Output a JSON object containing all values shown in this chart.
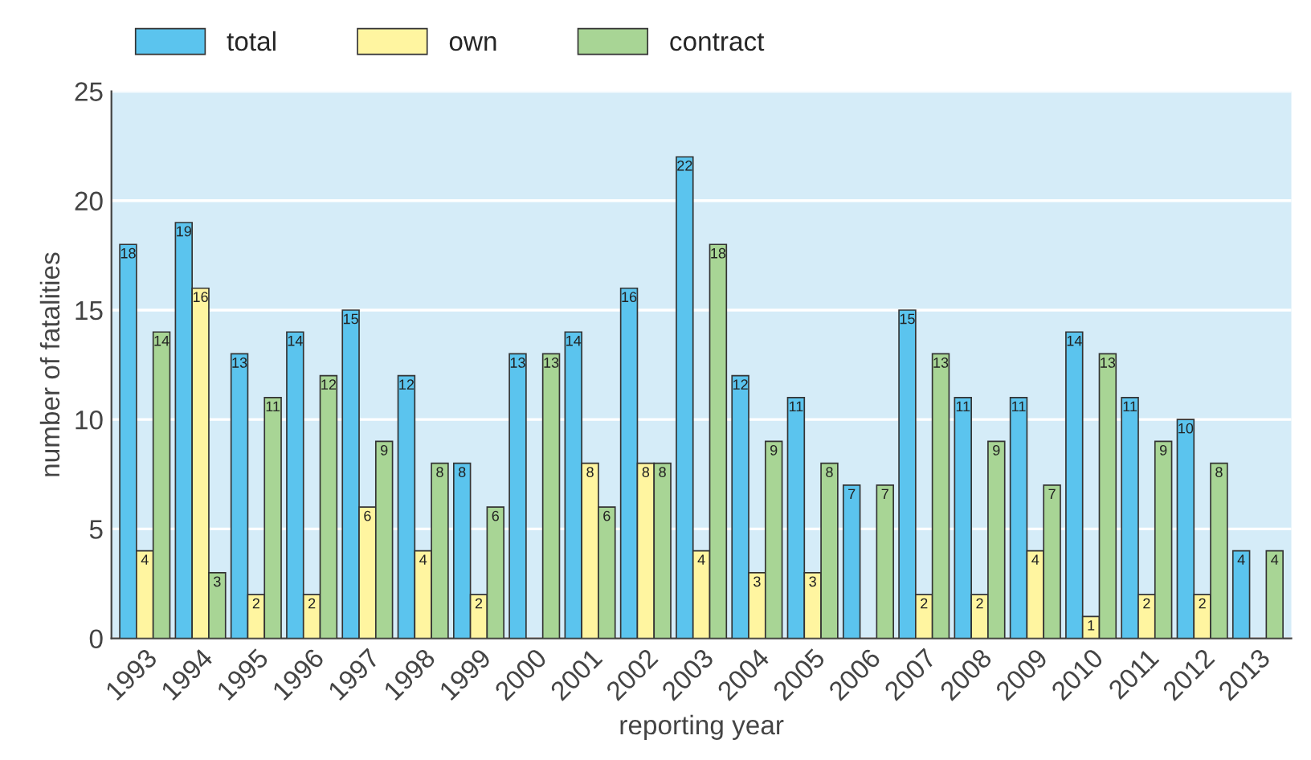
{
  "chart_data": {
    "type": "bar",
    "xlabel": "reporting year",
    "ylabel": "number of fatalities",
    "categories": [
      "1993",
      "1994",
      "1995",
      "1996",
      "1997",
      "1998",
      "1999",
      "2000",
      "2001",
      "2002",
      "2003",
      "2004",
      "2005",
      "2006",
      "2007",
      "2008",
      "2009",
      "2010",
      "2011",
      "2012",
      "2013"
    ],
    "series": [
      {
        "name": "total",
        "color": "#5bc4ee",
        "values": [
          18,
          19,
          13,
          14,
          15,
          12,
          8,
          13,
          14,
          16,
          22,
          12,
          11,
          7,
          15,
          11,
          11,
          14,
          11,
          10,
          4
        ],
        "value_labels": [
          "18",
          "19",
          "13",
          "14",
          "15",
          "12",
          "8",
          "13",
          "14",
          "16",
          "22",
          "12",
          "11",
          "7",
          "15",
          "11",
          "11",
          "14",
          "11",
          "10",
          "4"
        ]
      },
      {
        "name": "own",
        "color": "#fff5a0",
        "values": [
          4,
          16,
          2,
          2,
          6,
          4,
          2,
          0,
          8,
          8,
          4,
          3,
          3,
          0,
          2,
          2,
          4,
          1,
          2,
          2,
          0
        ],
        "value_labels": [
          "4",
          "16",
          "2",
          "2",
          "6",
          "4",
          "2",
          null,
          "8",
          "8",
          "4",
          "3",
          "3",
          null,
          "2",
          "2",
          "4",
          "1",
          "2",
          "2",
          null
        ]
      },
      {
        "name": "contract",
        "color": "#a8d595",
        "values": [
          14,
          3,
          11,
          12,
          9,
          8,
          6,
          13,
          6,
          8,
          18,
          9,
          8,
          7,
          13,
          9,
          7,
          13,
          9,
          8,
          4
        ],
        "value_labels": [
          "14",
          "3",
          "11",
          "12",
          "9",
          "8",
          "6",
          "13",
          "6",
          "8",
          "18",
          "9",
          "8",
          "7",
          "13",
          "9",
          "7",
          "13",
          "9",
          "8",
          "4"
        ]
      }
    ],
    "ylim": [
      0,
      25
    ],
    "yticks": [
      0,
      5,
      10,
      15,
      20,
      25
    ],
    "grid": "y",
    "legend": "top left"
  }
}
